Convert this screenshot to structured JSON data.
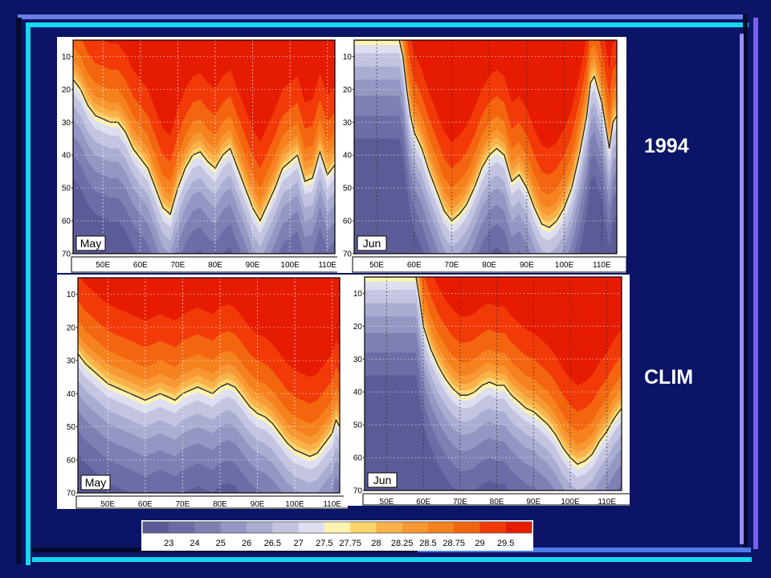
{
  "row_labels": [
    "1994",
    "CLIM"
  ],
  "chart_data": [
    {
      "type": "heatmap",
      "label": "May",
      "y_ticks": [
        "10",
        "20",
        "30",
        "40",
        "50",
        "60",
        "70"
      ],
      "ylim": [
        70,
        5
      ],
      "x_ticks": [
        "50E",
        "60E",
        "70E",
        "80E",
        "90E",
        "100E",
        "110E"
      ],
      "xlim": [
        42,
        112
      ],
      "thermocline_depth": [
        [
          42,
          17
        ],
        [
          44,
          20
        ],
        [
          46,
          25
        ],
        [
          48,
          28
        ],
        [
          50,
          29
        ],
        [
          52,
          30
        ],
        [
          54,
          30
        ],
        [
          56,
          33
        ],
        [
          58,
          38
        ],
        [
          60,
          41
        ],
        [
          62,
          44
        ],
        [
          64,
          50
        ],
        [
          66,
          56
        ],
        [
          68,
          58
        ],
        [
          70,
          50
        ],
        [
          72,
          44
        ],
        [
          74,
          40
        ],
        [
          76,
          39
        ],
        [
          78,
          42
        ],
        [
          80,
          44
        ],
        [
          82,
          40
        ],
        [
          84,
          38
        ],
        [
          86,
          44
        ],
        [
          88,
          50
        ],
        [
          90,
          56
        ],
        [
          92,
          60
        ],
        [
          94,
          55
        ],
        [
          96,
          50
        ],
        [
          98,
          44
        ],
        [
          100,
          42
        ],
        [
          102,
          40
        ],
        [
          104,
          48
        ],
        [
          106,
          47
        ],
        [
          108,
          39
        ],
        [
          110,
          46
        ],
        [
          112,
          43
        ]
      ]
    },
    {
      "type": "heatmap",
      "label": "Jun",
      "y_ticks": [
        "10",
        "20",
        "30",
        "40",
        "50",
        "60",
        "70"
      ],
      "ylim": [
        70,
        5
      ],
      "x_ticks": [
        "50E",
        "60E",
        "70E",
        "80E",
        "90E",
        "100E",
        "110E"
      ],
      "xlim": [
        42,
        112
      ],
      "thermocline_depth": [
        [
          54,
          5
        ],
        [
          55,
          10
        ],
        [
          56,
          20
        ],
        [
          57,
          28
        ],
        [
          58,
          33
        ],
        [
          60,
          38
        ],
        [
          62,
          45
        ],
        [
          64,
          51
        ],
        [
          66,
          57
        ],
        [
          68,
          60
        ],
        [
          70,
          58
        ],
        [
          72,
          55
        ],
        [
          74,
          50
        ],
        [
          76,
          44
        ],
        [
          78,
          40
        ],
        [
          80,
          38
        ],
        [
          82,
          40
        ],
        [
          83,
          44
        ],
        [
          84,
          48
        ],
        [
          86,
          46
        ],
        [
          88,
          50
        ],
        [
          90,
          56
        ],
        [
          92,
          61
        ],
        [
          94,
          62
        ],
        [
          96,
          60
        ],
        [
          98,
          56
        ],
        [
          100,
          50
        ],
        [
          102,
          40
        ],
        [
          104,
          28
        ],
        [
          105,
          18
        ],
        [
          106,
          16
        ],
        [
          108,
          24
        ],
        [
          110,
          38
        ],
        [
          111,
          30
        ],
        [
          112,
          28
        ]
      ]
    },
    {
      "type": "heatmap",
      "label": "May",
      "y_ticks": [
        "10",
        "20",
        "30",
        "40",
        "50",
        "60",
        "70"
      ],
      "ylim": [
        70,
        5
      ],
      "x_ticks": [
        "50E",
        "60E",
        "70E",
        "80E",
        "90E",
        "100E",
        "110E"
      ],
      "xlim": [
        42,
        112
      ],
      "thermocline_depth": [
        [
          42,
          28
        ],
        [
          44,
          31
        ],
        [
          46,
          33
        ],
        [
          48,
          35
        ],
        [
          50,
          37
        ],
        [
          52,
          38
        ],
        [
          54,
          39
        ],
        [
          56,
          40
        ],
        [
          58,
          41
        ],
        [
          60,
          42
        ],
        [
          62,
          41
        ],
        [
          64,
          40
        ],
        [
          66,
          41
        ],
        [
          68,
          42
        ],
        [
          70,
          40
        ],
        [
          72,
          39
        ],
        [
          74,
          38
        ],
        [
          76,
          39
        ],
        [
          78,
          40
        ],
        [
          80,
          38
        ],
        [
          82,
          37
        ],
        [
          84,
          38
        ],
        [
          86,
          41
        ],
        [
          88,
          44
        ],
        [
          90,
          46
        ],
        [
          92,
          47
        ],
        [
          94,
          49
        ],
        [
          96,
          52
        ],
        [
          98,
          55
        ],
        [
          100,
          57
        ],
        [
          102,
          58
        ],
        [
          104,
          59
        ],
        [
          106,
          58
        ],
        [
          108,
          55
        ],
        [
          110,
          52
        ],
        [
          111,
          48
        ],
        [
          112,
          50
        ]
      ]
    },
    {
      "type": "heatmap",
      "label": "Jun",
      "y_ticks": [
        "10",
        "20",
        "30",
        "40",
        "50",
        "60",
        "70"
      ],
      "ylim": [
        70,
        5
      ],
      "x_ticks": [
        "50E",
        "60E",
        "70E",
        "80E",
        "90E",
        "100E",
        "110E"
      ],
      "xlim": [
        42,
        112
      ],
      "thermocline_depth": [
        [
          56,
          5
        ],
        [
          57,
          12
        ],
        [
          58,
          20
        ],
        [
          60,
          27
        ],
        [
          62,
          32
        ],
        [
          64,
          36
        ],
        [
          66,
          39
        ],
        [
          68,
          41
        ],
        [
          70,
          41
        ],
        [
          72,
          40
        ],
        [
          74,
          38
        ],
        [
          76,
          37
        ],
        [
          78,
          38
        ],
        [
          80,
          38
        ],
        [
          82,
          41
        ],
        [
          84,
          43
        ],
        [
          86,
          45
        ],
        [
          88,
          46
        ],
        [
          90,
          48
        ],
        [
          92,
          50
        ],
        [
          94,
          53
        ],
        [
          96,
          57
        ],
        [
          98,
          60
        ],
        [
          100,
          62
        ],
        [
          102,
          61
        ],
        [
          104,
          59
        ],
        [
          106,
          55
        ],
        [
          108,
          52
        ],
        [
          110,
          48
        ],
        [
          112,
          45
        ]
      ]
    }
  ],
  "legend": {
    "values": [
      "23",
      "24",
      "25",
      "26",
      "26.5",
      "27",
      "27.5",
      "27.75",
      "28",
      "28.25",
      "28.5",
      "28.75",
      "29",
      "29.5"
    ],
    "colors": [
      "#5b5c97",
      "#6c6da6",
      "#7e80b4",
      "#9497c3",
      "#aaadd2",
      "#c2c4e0",
      "#dddff0",
      "#fdf3b0",
      "#fbd46e",
      "#f9b24a",
      "#f79833",
      "#f6811f",
      "#f46510",
      "#f23a08",
      "#e61c02"
    ]
  }
}
